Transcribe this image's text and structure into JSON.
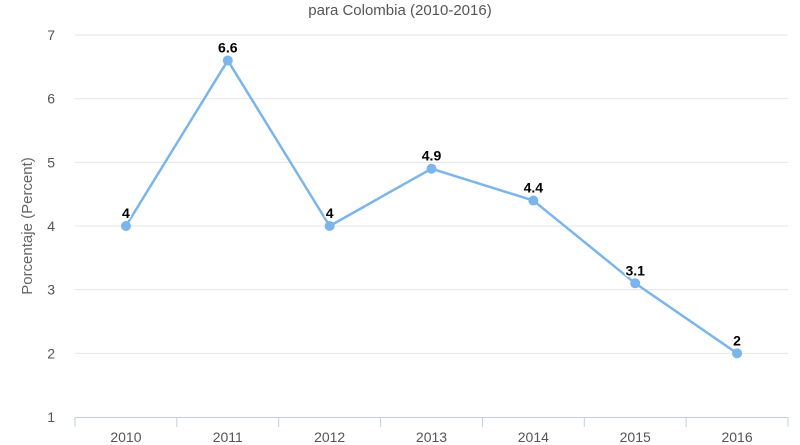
{
  "chart_data": {
    "type": "line",
    "title": "para Colombia (2010-2016)",
    "ylabel": "Porcentaje (Percent)",
    "xlabel": "",
    "categories": [
      "2010",
      "2011",
      "2012",
      "2013",
      "2014",
      "2015",
      "2016"
    ],
    "series": [
      {
        "values": [
          4,
          6.6,
          4,
          4.9,
          4.4,
          3.1,
          2
        ],
        "data_labels": [
          "4",
          "6.6",
          "4",
          "4.9",
          "4.4",
          "3.1",
          "2"
        ],
        "color": "#7cb5ec"
      }
    ],
    "ylim": [
      1,
      7
    ],
    "yticks": [
      "1",
      "2",
      "3",
      "4",
      "5",
      "6",
      "7"
    ],
    "grid": true,
    "legend": "none"
  }
}
